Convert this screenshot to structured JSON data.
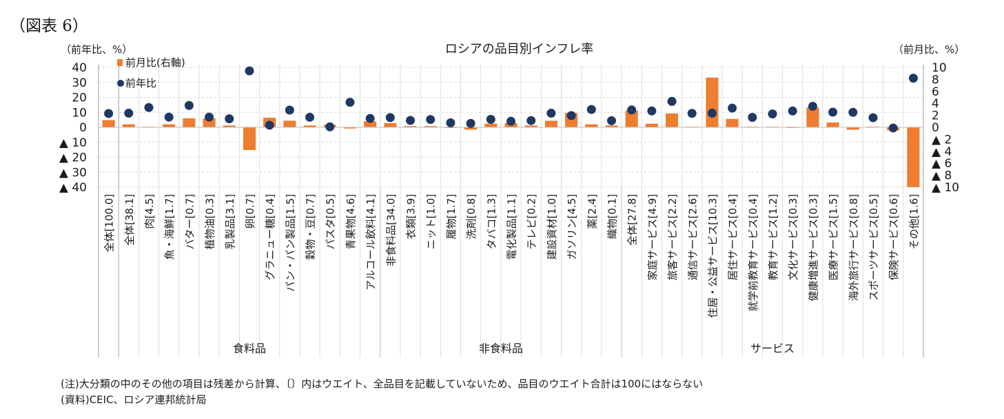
{
  "figure_label": "（図表 6）",
  "chart_data": {
    "type": "bar+scatter",
    "title": "ロシアの品目別インフレ率",
    "left_axis_label": "（前年比、%）",
    "right_axis_label": "（前月比、%）",
    "left_ylim": [
      -40,
      40
    ],
    "right_ylim": [
      -10,
      10
    ],
    "left_ticks": [
      "40",
      "30",
      "20",
      "10",
      "0",
      "▲ 10",
      "▲ 20",
      "▲ 30",
      "▲ 40"
    ],
    "right_ticks": [
      "10",
      "8",
      "6",
      "4",
      "2",
      "0",
      "▲ 2",
      "▲ 4",
      "▲ 6",
      "▲ 8",
      "▲ 10"
    ],
    "legend": {
      "bar": "前月比(右軸)",
      "dot": "前年比"
    },
    "bar_color": "#ED7D31",
    "dot_color": "#1F3864",
    "categories": [
      "全体[100.0]",
      "全体[38.1]",
      "肉[4.5]",
      "魚・海鮮[1.7]",
      "バター[0.7]",
      "植物油[0.3]",
      "乳製品[3.1]",
      "卵[0.7]",
      "グラニュー糖[0.4]",
      "パン・パン製品[1.5]",
      "穀物・豆[0.7]",
      "パスタ[0.5]",
      "青果物[4.6]",
      "アルコール飲料[4.1]",
      "非食料品[34.0]",
      "衣類[3.9]",
      "ニット[1.0]",
      "履物[1.7]",
      "洗剤[0.8]",
      "タバコ[1.3]",
      "電化製品[1.1]",
      "テレビ[0.2]",
      "建設資材[1.0]",
      "ガソリン[4.5]",
      "薬[2.4]",
      "織物[0.1]",
      "全体[27.8]",
      "家庭サービス[4.9]",
      "旅客サービス[2.2]",
      "通信サービス[2.6]",
      "住居・公益サービス[10.3]",
      "居住サービス[0.4]",
      "就学前教育サービス[0.4]",
      "教育サービス[1.2]",
      "文化サービス[0.3]",
      "健康増進サービス[0.3]",
      "医療サービス[1.5]",
      "海外旅行サービス[0.8]",
      "スポーツサービス[0.5]",
      "保険サービス[0.6]",
      "その他[1.6]"
    ],
    "mom_right_axis": [
      1.2,
      0.5,
      0.1,
      0.5,
      1.5,
      1.5,
      0.3,
      -3.8,
      1.6,
      1.1,
      0.3,
      0.4,
      -0.2,
      1.0,
      0.7,
      0.2,
      0.2,
      0.0,
      -0.4,
      0.6,
      0.7,
      0.3,
      1.1,
      2.4,
      0.5,
      0.3,
      2.8,
      0.6,
      2.3,
      0.1,
      8.3,
      1.4,
      0.1,
      0.1,
      -0.1,
      3.3,
      0.8,
      -0.4,
      0.1,
      -0.5,
      -10.0
    ],
    "yoy_left_axis": [
      9.2,
      9.4,
      13.2,
      6.8,
      14.6,
      6.8,
      5.7,
      37.7,
      1.4,
      11.5,
      6.7,
      0.3,
      16.7,
      5.9,
      6.5,
      4.6,
      5.2,
      3.0,
      2.6,
      5.3,
      4.0,
      4.5,
      9.4,
      7.8,
      11.9,
      4.4,
      11.6,
      10.9,
      17.3,
      9.3,
      9.4,
      12.8,
      6.6,
      8.9,
      10.9,
      14.0,
      10.1,
      10.0,
      6.4,
      -0.5,
      32.8
    ],
    "groups": [
      {
        "name": "食料品",
        "start": 1,
        "end": 13
      },
      {
        "name": "非食料品",
        "start": 14,
        "end": 25
      },
      {
        "name": "サービス",
        "start": 26,
        "end": 40
      }
    ]
  },
  "notes": {
    "note1": "(注)大分類の中のその他の項目は残差から計算、〔〕内はウエイト、全品目を記載していないため、品目のウエイト合計は100にはならない",
    "note2": "(資料)CEIC、ロシア連邦統計局"
  }
}
